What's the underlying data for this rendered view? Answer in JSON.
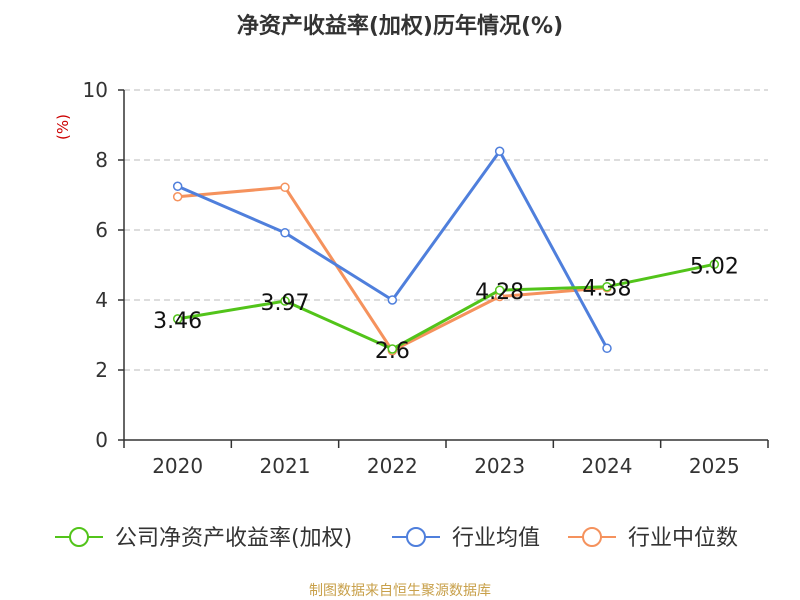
{
  "chart_data": {
    "type": "line",
    "title": "净资产收益率(加权)历年情况(%)",
    "ylabel": "(%)",
    "categories": [
      "2020",
      "2021",
      "2022",
      "2023",
      "2024",
      "2025"
    ],
    "ylim": [
      0,
      10
    ],
    "yticks": [
      "0",
      "2",
      "4",
      "6",
      "8",
      "10"
    ],
    "grid": true,
    "legend_position": "bottom",
    "series": [
      {
        "name": "公司净资产收益率(加权)",
        "color": "#52c41a",
        "values": [
          3.46,
          3.97,
          2.6,
          4.28,
          4.38,
          5.02
        ],
        "labels": [
          "3.46",
          "3.97",
          "2.6",
          "4.28",
          "4.38",
          "5.02"
        ]
      },
      {
        "name": "行业均值",
        "color": "#4f7fdc",
        "values": [
          7.25,
          5.92,
          4.0,
          8.25,
          2.62,
          null
        ]
      },
      {
        "name": "行业中位数",
        "color": "#f5925d",
        "values": [
          6.95,
          7.22,
          2.55,
          4.1,
          4.35,
          null
        ]
      }
    ],
    "source": "制图数据来自恒生聚源数据库",
    "colors": {
      "title": "#333333",
      "ylabel": "#cc0000",
      "source": "#c8a04a",
      "axis": "#333333",
      "grid": "#bbbbbb"
    }
  }
}
